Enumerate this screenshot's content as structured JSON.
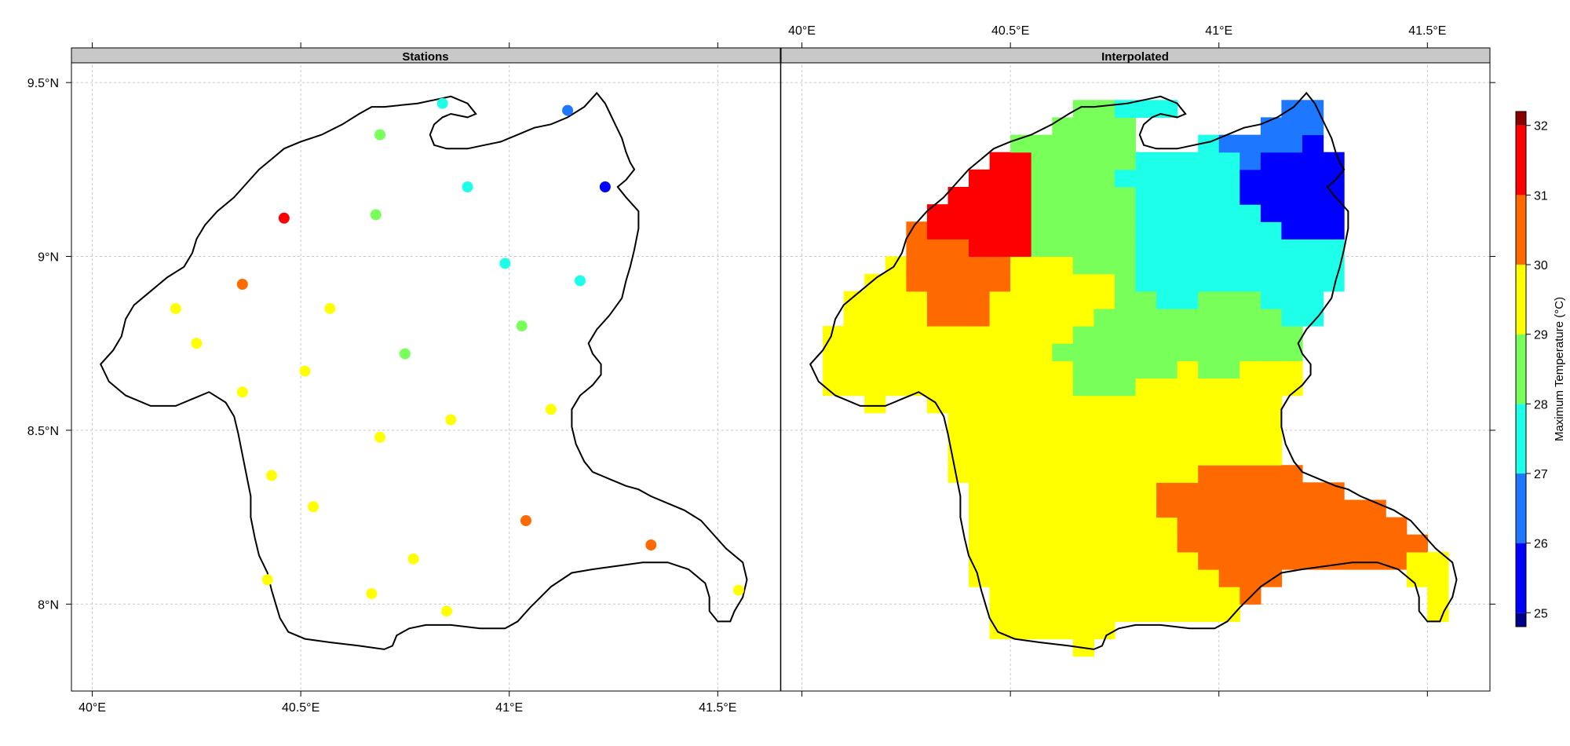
{
  "figure": {
    "panels": [
      {
        "strip_label": "Stations"
      },
      {
        "strip_label": "Interpolated"
      }
    ],
    "x_tick_labels": [
      "40°E",
      "40.5°E",
      "41°E",
      "41.5°E"
    ],
    "y_tick_labels": [
      "9.5°N",
      "9°N",
      "8.5°N",
      "8°N"
    ]
  },
  "colorbar": {
    "title": "Maximum Temperature (°C)",
    "range": [
      24.8,
      32.2
    ],
    "tick_labels": [
      "25",
      "26",
      "27",
      "28",
      "29",
      "30",
      "31",
      "32"
    ],
    "tick_values": [
      25,
      26,
      27,
      28,
      29,
      30,
      31,
      32
    ]
  },
  "chart_data": {
    "type": "scatter",
    "x_ticks": [
      40,
      40.5,
      41,
      41.5
    ],
    "y_ticks": [
      9.5,
      9,
      8.5,
      8
    ],
    "xlim": [
      39.95,
      41.65
    ],
    "ylim": [
      7.75,
      9.55
    ],
    "grid": true,
    "stations": [
      {
        "lon": 40.84,
        "lat": 9.44,
        "tmax": 27.5
      },
      {
        "lon": 41.14,
        "lat": 9.42,
        "tmax": 26.5
      },
      {
        "lon": 40.69,
        "lat": 9.35,
        "tmax": 28.5
      },
      {
        "lon": 40.9,
        "lat": 9.2,
        "tmax": 27.5
      },
      {
        "lon": 41.23,
        "lat": 9.2,
        "tmax": 25.5
      },
      {
        "lon": 40.46,
        "lat": 9.11,
        "tmax": 31.5
      },
      {
        "lon": 40.68,
        "lat": 9.12,
        "tmax": 28.5
      },
      {
        "lon": 40.99,
        "lat": 8.98,
        "tmax": 27.5
      },
      {
        "lon": 41.17,
        "lat": 8.93,
        "tmax": 27.5
      },
      {
        "lon": 40.36,
        "lat": 8.92,
        "tmax": 30.5
      },
      {
        "lon": 40.2,
        "lat": 8.85,
        "tmax": 29.5
      },
      {
        "lon": 40.57,
        "lat": 8.85,
        "tmax": 29.5
      },
      {
        "lon": 41.03,
        "lat": 8.8,
        "tmax": 28.5
      },
      {
        "lon": 40.25,
        "lat": 8.75,
        "tmax": 29.5
      },
      {
        "lon": 40.75,
        "lat": 8.72,
        "tmax": 28.5
      },
      {
        "lon": 40.51,
        "lat": 8.67,
        "tmax": 29.5
      },
      {
        "lon": 40.36,
        "lat": 8.61,
        "tmax": 29.5
      },
      {
        "lon": 41.1,
        "lat": 8.56,
        "tmax": 29.5
      },
      {
        "lon": 40.86,
        "lat": 8.53,
        "tmax": 29.5
      },
      {
        "lon": 40.69,
        "lat": 8.48,
        "tmax": 29.5
      },
      {
        "lon": 40.43,
        "lat": 8.37,
        "tmax": 29.5
      },
      {
        "lon": 40.53,
        "lat": 8.28,
        "tmax": 29.5
      },
      {
        "lon": 41.04,
        "lat": 8.24,
        "tmax": 30.5
      },
      {
        "lon": 41.34,
        "lat": 8.17,
        "tmax": 30.5
      },
      {
        "lon": 40.77,
        "lat": 8.13,
        "tmax": 29.5
      },
      {
        "lon": 40.42,
        "lat": 8.07,
        "tmax": 29.5
      },
      {
        "lon": 41.55,
        "lat": 8.04,
        "tmax": 29.5
      },
      {
        "lon": 40.67,
        "lat": 8.03,
        "tmax": 29.5
      },
      {
        "lon": 40.85,
        "lat": 7.98,
        "tmax": 29.5
      }
    ],
    "interpolated_cell_size_deg": 0.05,
    "interpolation_method": "nearest station"
  }
}
